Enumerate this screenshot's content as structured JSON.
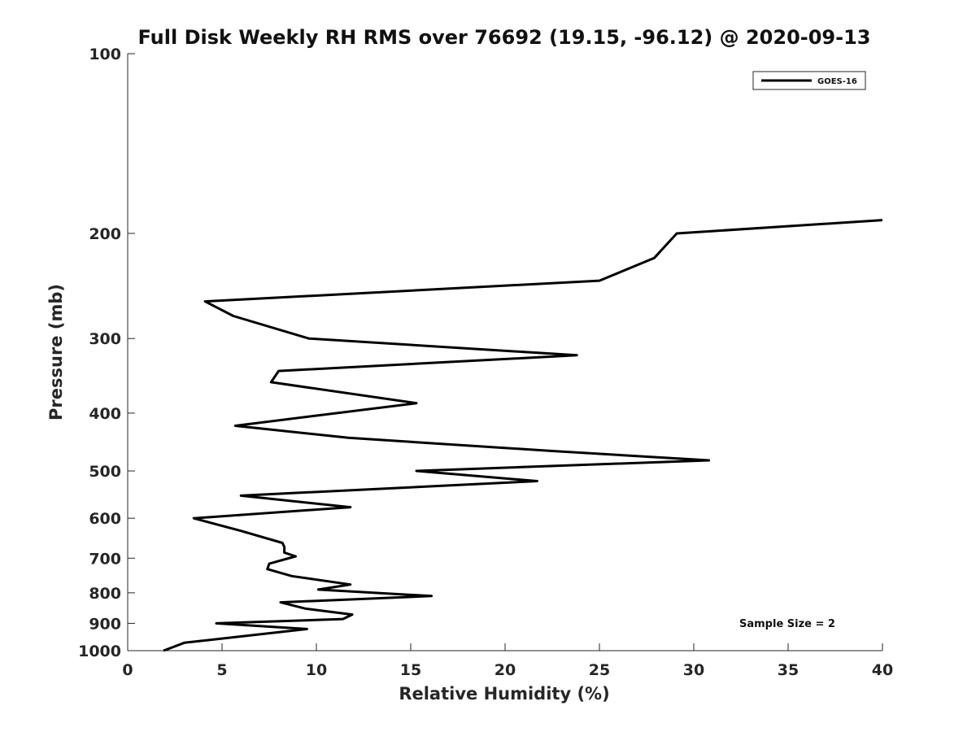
{
  "chart_data": {
    "type": "line",
    "title": "Full Disk Weekly RH RMS over 76692 (19.15, -96.12) @ 2020-09-13",
    "xlabel": "Relative Humidity (%)",
    "ylabel": "Pressure (mb)",
    "xlim": [
      0,
      40
    ],
    "ylim": [
      100,
      1000
    ],
    "yscale": "log",
    "y_reversed": true,
    "xticks": [
      0,
      5,
      10,
      15,
      20,
      25,
      30,
      35,
      40
    ],
    "yticks": [
      100,
      200,
      300,
      400,
      500,
      600,
      700,
      800,
      900,
      1000
    ],
    "grid": false,
    "legend_position": "top-right",
    "annotation": "Sample Size = 2",
    "series": [
      {
        "name": "GOES-16",
        "color": "#000000",
        "x": [
          40.0,
          29.1,
          27.9,
          25.0,
          4.1,
          5.6,
          9.6,
          23.8,
          8.0,
          7.6,
          15.3,
          5.7,
          11.7,
          22.5,
          30.8,
          15.3,
          21.7,
          6.0,
          11.8,
          3.5,
          6.0,
          8.2,
          8.3,
          8.3,
          8.9,
          7.5,
          7.4,
          8.7,
          11.8,
          10.1,
          16.1,
          8.1,
          9.4,
          11.9,
          11.4,
          4.7,
          9.5,
          3.0,
          1.9
        ],
        "y": [
          190,
          200,
          220,
          240,
          260,
          275,
          300,
          320,
          340,
          355,
          385,
          420,
          440,
          463,
          480,
          500,
          520,
          550,
          575,
          600,
          630,
          660,
          670,
          685,
          695,
          715,
          730,
          750,
          775,
          790,
          810,
          830,
          850,
          870,
          885,
          900,
          920,
          970,
          1000
        ]
      }
    ]
  }
}
